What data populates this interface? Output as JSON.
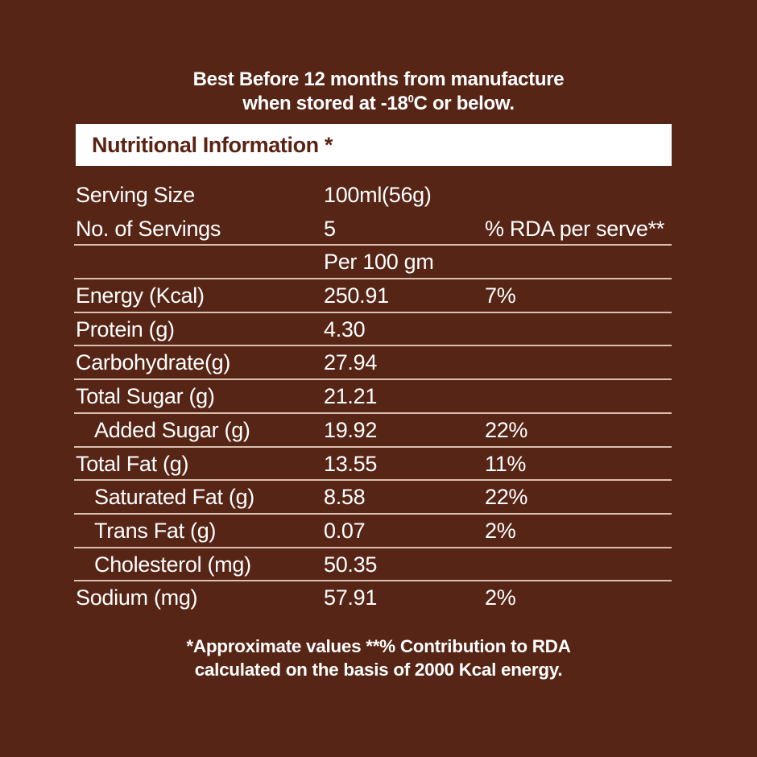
{
  "storage": {
    "line1": "Best Before 12 months from manufacture",
    "line2_pre": "when stored at -18",
    "line2_sup": "0",
    "line2_post": "C or below."
  },
  "nutrition_header": {
    "title": "Nutritional Information *"
  },
  "serving": {
    "size_label": "Serving Size",
    "size_value": "100ml(56g)",
    "count_label": "No. of Servings",
    "count_value": "5",
    "rda_header": "% RDA per serve**",
    "per_label": "Per 100 gm"
  },
  "nutrients": [
    {
      "label": "Energy (Kcal)",
      "value": "250.91",
      "rda": "7%",
      "indent": false
    },
    {
      "label": "Protein (g)",
      "value": "4.30",
      "rda": "",
      "indent": false
    },
    {
      "label": "Carbohydrate(g)",
      "value": "27.94",
      "rda": "",
      "indent": false
    },
    {
      "label": "Total Sugar (g)",
      "value": "21.21",
      "rda": "",
      "indent": false
    },
    {
      "label": "Added Sugar (g)",
      "value": "19.92",
      "rda": "22%",
      "indent": true
    },
    {
      "label": "Total Fat (g)",
      "value": "13.55",
      "rda": "11%",
      "indent": false
    },
    {
      "label": "Saturated Fat (g)",
      "value": "8.58",
      "rda": "22%",
      "indent": true
    },
    {
      "label": "Trans Fat (g)",
      "value": "0.07",
      "rda": "2%",
      "indent": true
    },
    {
      "label": "Cholesterol (mg)",
      "value": "50.35",
      "rda": "",
      "indent": true
    },
    {
      "label": "Sodium (mg)",
      "value": "57.91",
      "rda": "2%",
      "indent": false
    }
  ],
  "footnote": {
    "line1": "*Approximate values **% Contribution to RDA",
    "line2": "calculated on the basis of 2000 Kcal energy."
  },
  "colors": {
    "background": "#572516",
    "header_band": "#ffffff",
    "header_text": "#5a2414",
    "divider": "#d9c0b0",
    "text": "#ffffff"
  }
}
